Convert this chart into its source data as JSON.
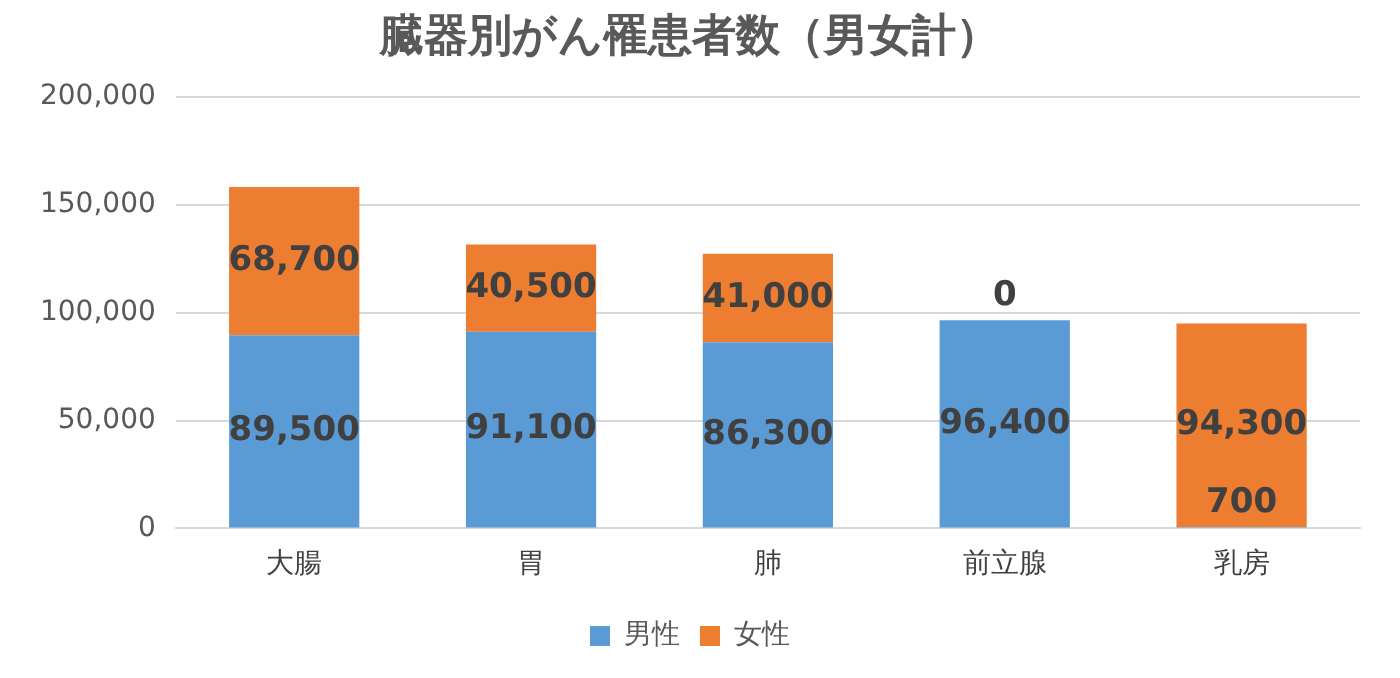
{
  "chart_data": {
    "type": "bar",
    "title": "臓器別がん罹患者数（男女計）",
    "categories": [
      "大腸",
      "胃",
      "肺",
      "前立腺",
      "乳房"
    ],
    "series": [
      {
        "name": "男性",
        "color": "#5b9bd5",
        "values": [
          89500,
          91100,
          86300,
          96400,
          700
        ],
        "value_labels": [
          "89,500",
          "91,100",
          "86,300",
          "96,400",
          "700"
        ]
      },
      {
        "name": "女性",
        "color": "#ed7d31",
        "values": [
          68700,
          40500,
          41000,
          0,
          94300
        ],
        "value_labels": [
          "68,700",
          "40,500",
          "41,000",
          "0",
          "94,300"
        ]
      }
    ],
    "stacked": true,
    "ylim": [
      0,
      200000
    ],
    "yticks": [
      {
        "value": 0,
        "label": "0"
      },
      {
        "value": 50000,
        "label": "50,000"
      },
      {
        "value": 100000,
        "label": "100,000"
      },
      {
        "value": 150000,
        "label": "150,000"
      },
      {
        "value": 200000,
        "label": "200,000"
      }
    ],
    "grid": "y",
    "legend": "bottom"
  }
}
